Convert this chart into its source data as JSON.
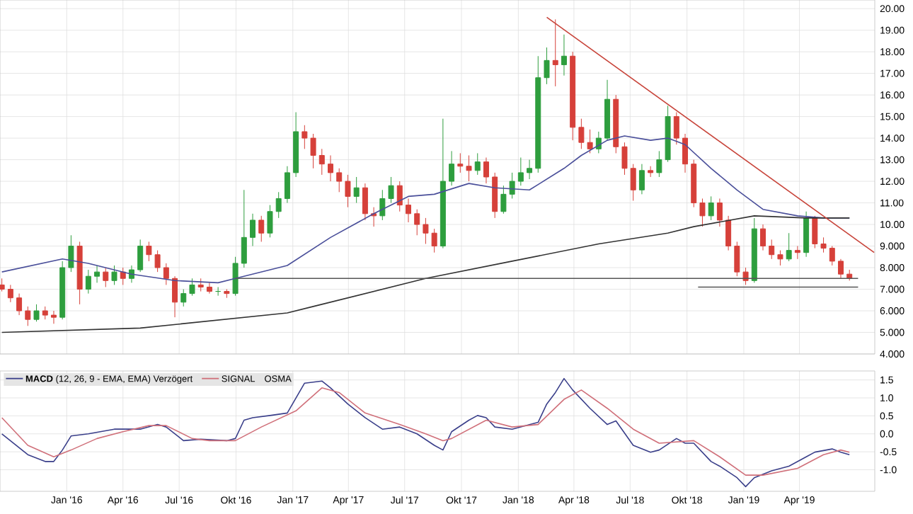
{
  "chart_data": [
    {
      "type": "candlestick",
      "xlim": [
        "2015-09-15",
        "2019-08-01"
      ],
      "ylim": [
        4,
        20.4
      ],
      "grid": true,
      "tick_labels": "y",
      "xticks": [
        {
          "value": "2016-01-01",
          "label": null
        },
        {
          "value": "2016-04-01",
          "label": null
        },
        {
          "value": "2016-07-01",
          "label": null
        },
        {
          "value": "2016-10-01",
          "label": null
        },
        {
          "value": "2017-01-01",
          "label": null
        },
        {
          "value": "2017-04-01",
          "label": null
        },
        {
          "value": "2017-07-01",
          "label": null
        },
        {
          "value": "2017-10-01",
          "label": null
        },
        {
          "value": "2018-01-01",
          "label": null
        },
        {
          "value": "2018-04-01",
          "label": null
        },
        {
          "value": "2018-07-01",
          "label": null
        },
        {
          "value": "2018-10-01",
          "label": null
        },
        {
          "value": "2019-01-01",
          "label": null
        },
        {
          "value": "2019-04-01",
          "label": null
        }
      ],
      "yticks": [
        {
          "value": 4,
          "label": "4.000"
        },
        {
          "value": 5,
          "label": "5.000"
        },
        {
          "value": 6,
          "label": "6.000"
        },
        {
          "value": 7,
          "label": "7.000"
        },
        {
          "value": 8,
          "label": "8.000"
        },
        {
          "value": 9,
          "label": "9.000"
        },
        {
          "value": 10,
          "label": "10.00"
        },
        {
          "value": 11,
          "label": "11.00"
        },
        {
          "value": 12,
          "label": "12.00"
        },
        {
          "value": 13,
          "label": "13.00"
        },
        {
          "value": 14,
          "label": "14.00"
        },
        {
          "value": 15,
          "label": "15.00"
        },
        {
          "value": 16,
          "label": "16.00"
        },
        {
          "value": 17,
          "label": "17.00"
        },
        {
          "value": 18,
          "label": "18.00"
        },
        {
          "value": 19,
          "label": "19.00"
        },
        {
          "value": 20,
          "label": "20.00"
        }
      ],
      "series": [
        {
          "type": "candlestick",
          "x": [
            "2015-09-18",
            "2015-10-02",
            "2015-10-16",
            "2015-10-30",
            "2015-11-13",
            "2015-11-27",
            "2015-12-11",
            "2015-12-25",
            "2016-01-08",
            "2016-01-22",
            "2016-02-05",
            "2016-02-19",
            "2016-03-04",
            "2016-03-18",
            "2016-04-01",
            "2016-04-15",
            "2016-04-29",
            "2016-05-13",
            "2016-05-27",
            "2016-06-10",
            "2016-06-24",
            "2016-07-08",
            "2016-07-22",
            "2016-08-05",
            "2016-08-19",
            "2016-09-02",
            "2016-09-16",
            "2016-09-30",
            "2016-10-14",
            "2016-10-28",
            "2016-11-11",
            "2016-11-25",
            "2016-12-09",
            "2016-12-23",
            "2017-01-06",
            "2017-01-20",
            "2017-02-03",
            "2017-02-17",
            "2017-03-03",
            "2017-03-17",
            "2017-03-31",
            "2017-04-14",
            "2017-04-28",
            "2017-05-12",
            "2017-05-26",
            "2017-06-09",
            "2017-06-23",
            "2017-07-07",
            "2017-07-21",
            "2017-08-04",
            "2017-08-18",
            "2017-09-01",
            "2017-09-15",
            "2017-09-29",
            "2017-10-13",
            "2017-10-27",
            "2017-11-10",
            "2017-11-24",
            "2017-12-08",
            "2017-12-22",
            "2018-01-05",
            "2018-01-19",
            "2018-02-02",
            "2018-02-16",
            "2018-03-02",
            "2018-03-16",
            "2018-03-30",
            "2018-04-13",
            "2018-04-27",
            "2018-05-11",
            "2018-05-25",
            "2018-06-08",
            "2018-06-22",
            "2018-07-06",
            "2018-07-20",
            "2018-08-03",
            "2018-08-17",
            "2018-08-31",
            "2018-09-14",
            "2018-09-28",
            "2018-10-12",
            "2018-10-26",
            "2018-11-09",
            "2018-11-23",
            "2018-12-07",
            "2018-12-21",
            "2019-01-04",
            "2019-01-18",
            "2019-02-01",
            "2019-02-15",
            "2019-03-01",
            "2019-03-15",
            "2019-03-29",
            "2019-04-12",
            "2019-04-26",
            "2019-05-10",
            "2019-05-24",
            "2019-06-07",
            "2019-06-21"
          ],
          "ohlc": [
            [
              7.2,
              7.5,
              6.9,
              7.0
            ],
            [
              7.0,
              7.2,
              6.4,
              6.6
            ],
            [
              6.6,
              6.8,
              5.8,
              6.0
            ],
            [
              6.0,
              6.2,
              5.3,
              5.6
            ],
            [
              5.6,
              6.3,
              5.5,
              6.0
            ],
            [
              6.0,
              6.2,
              5.6,
              5.8
            ],
            [
              5.8,
              6.0,
              5.4,
              5.7
            ],
            [
              5.7,
              8.3,
              5.6,
              8.0
            ],
            [
              8.0,
              9.5,
              7.8,
              9.0
            ],
            [
              9.0,
              9.2,
              6.3,
              7.0
            ],
            [
              7.0,
              7.9,
              6.8,
              7.6
            ],
            [
              7.6,
              8.1,
              7.3,
              7.8
            ],
            [
              7.8,
              8.0,
              7.1,
              7.4
            ],
            [
              7.4,
              8.1,
              7.2,
              7.8
            ],
            [
              7.8,
              8.0,
              7.2,
              7.5
            ],
            [
              7.5,
              8.1,
              7.3,
              7.9
            ],
            [
              7.9,
              9.3,
              7.8,
              9.0
            ],
            [
              9.0,
              9.2,
              8.3,
              8.6
            ],
            [
              8.6,
              8.8,
              7.8,
              8.0
            ],
            [
              8.0,
              8.2,
              7.2,
              7.5
            ],
            [
              7.5,
              7.6,
              5.7,
              6.4
            ],
            [
              6.4,
              7.0,
              6.2,
              6.8
            ],
            [
              6.8,
              7.5,
              6.7,
              7.2
            ],
            [
              7.2,
              7.5,
              6.9,
              7.1
            ],
            [
              7.1,
              7.3,
              6.8,
              6.9
            ],
            [
              6.9,
              7.1,
              6.7,
              6.9
            ],
            [
              6.9,
              7.0,
              6.6,
              6.8
            ],
            [
              6.8,
              8.5,
              6.7,
              8.2
            ],
            [
              8.2,
              11.6,
              8.0,
              9.4
            ],
            [
              9.4,
              10.5,
              9.0,
              10.2
            ],
            [
              10.2,
              10.4,
              9.2,
              9.6
            ],
            [
              9.6,
              10.9,
              9.4,
              10.6
            ],
            [
              10.6,
              11.5,
              10.3,
              11.2
            ],
            [
              11.2,
              12.7,
              11.0,
              12.4
            ],
            [
              12.4,
              15.2,
              12.2,
              14.3
            ],
            [
              14.3,
              14.6,
              13.5,
              14.0
            ],
            [
              14.0,
              14.2,
              12.6,
              13.2
            ],
            [
              13.2,
              13.5,
              12.3,
              12.8
            ],
            [
              12.8,
              13.2,
              12.0,
              12.4
            ],
            [
              12.4,
              12.6,
              11.5,
              12.0
            ],
            [
              12.0,
              12.3,
              10.8,
              11.3
            ],
            [
              11.3,
              12.2,
              11.0,
              11.7
            ],
            [
              11.7,
              11.9,
              10.2,
              10.5
            ],
            [
              10.5,
              10.8,
              9.9,
              10.4
            ],
            [
              10.4,
              11.6,
              10.2,
              11.2
            ],
            [
              11.2,
              12.2,
              11.0,
              11.8
            ],
            [
              11.8,
              12.0,
              10.6,
              10.9
            ],
            [
              10.9,
              11.2,
              10.1,
              10.5
            ],
            [
              10.5,
              10.7,
              9.5,
              10.0
            ],
            [
              10.0,
              10.3,
              9.1,
              9.6
            ],
            [
              9.6,
              9.8,
              8.7,
              9.0
            ],
            [
              9.0,
              14.9,
              8.9,
              12.0
            ],
            [
              12.0,
              13.4,
              11.8,
              12.8
            ],
            [
              12.8,
              13.3,
              12.4,
              12.7
            ],
            [
              12.7,
              13.2,
              12.0,
              12.5
            ],
            [
              12.5,
              13.3,
              12.3,
              12.9
            ],
            [
              12.9,
              13.1,
              11.9,
              12.2
            ],
            [
              12.2,
              12.4,
              10.3,
              10.6
            ],
            [
              10.6,
              11.8,
              10.5,
              11.4
            ],
            [
              11.4,
              12.4,
              11.2,
              12.0
            ],
            [
              12.0,
              13.1,
              11.8,
              12.4
            ],
            [
              12.4,
              13.0,
              12.1,
              12.6
            ],
            [
              12.6,
              17.8,
              12.4,
              16.8
            ],
            [
              16.8,
              18.2,
              16.5,
              17.6
            ],
            [
              17.6,
              19.5,
              16.4,
              17.4
            ],
            [
              17.4,
              18.8,
              16.9,
              17.8
            ],
            [
              17.8,
              18.0,
              13.9,
              14.5
            ],
            [
              14.5,
              14.9,
              13.5,
              13.8
            ],
            [
              13.8,
              14.4,
              13.3,
              13.5
            ],
            [
              13.5,
              14.3,
              13.3,
              14.0
            ],
            [
              14.0,
              16.7,
              13.9,
              15.8
            ],
            [
              15.8,
              16.0,
              13.3,
              13.6
            ],
            [
              13.6,
              13.8,
              12.3,
              12.6
            ],
            [
              12.6,
              12.8,
              11.1,
              11.6
            ],
            [
              11.6,
              12.8,
              11.4,
              12.5
            ],
            [
              12.5,
              12.7,
              12.2,
              12.4
            ],
            [
              12.4,
              13.4,
              12.2,
              13.0
            ],
            [
              13.0,
              15.5,
              12.9,
              15.0
            ],
            [
              15.0,
              15.2,
              13.7,
              14.0
            ],
            [
              14.0,
              14.2,
              12.4,
              12.8
            ],
            [
              12.8,
              13.0,
              10.8,
              11.0
            ],
            [
              11.0,
              11.2,
              9.9,
              10.4
            ],
            [
              10.4,
              11.3,
              10.2,
              11.0
            ],
            [
              11.0,
              11.2,
              9.9,
              10.2
            ],
            [
              10.2,
              10.4,
              8.8,
              9.0
            ],
            [
              9.0,
              9.2,
              7.6,
              7.8
            ],
            [
              7.8,
              8.0,
              7.2,
              7.4
            ],
            [
              7.4,
              10.3,
              7.3,
              9.8
            ],
            [
              9.8,
              10.0,
              8.8,
              9.0
            ],
            [
              9.0,
              9.3,
              8.4,
              8.6
            ],
            [
              8.6,
              8.8,
              8.1,
              8.4
            ],
            [
              8.4,
              9.6,
              8.3,
              8.8
            ],
            [
              8.8,
              9.0,
              8.4,
              8.7
            ],
            [
              8.7,
              10.6,
              8.5,
              10.3
            ],
            [
              10.3,
              10.4,
              8.9,
              9.1
            ],
            [
              9.1,
              9.4,
              8.7,
              8.9
            ],
            [
              8.9,
              9.0,
              8.1,
              8.3
            ],
            [
              8.3,
              8.4,
              7.5,
              7.7
            ],
            [
              7.7,
              7.9,
              7.4,
              7.5
            ]
          ],
          "colors": [
            "#d6403a",
            "#d6403a",
            "#d6403a",
            "#d6403a",
            "#2e9e3e",
            "#d6403a",
            "#d6403a",
            "#2e9e3e",
            "#2e9e3e",
            "#d6403a",
            "#2e9e3e",
            "#2e9e3e",
            "#d6403a",
            "#2e9e3e",
            "#d6403a",
            "#2e9e3e",
            "#2e9e3e",
            "#d6403a",
            "#d6403a",
            "#d6403a",
            "#d6403a",
            "#2e9e3e",
            "#2e9e3e",
            "#d6403a",
            "#d6403a",
            "#2e9e3e",
            "#d6403a",
            "#2e9e3e",
            "#2e9e3e",
            "#2e9e3e",
            "#d6403a",
            "#2e9e3e",
            "#2e9e3e",
            "#2e9e3e",
            "#2e9e3e",
            "#d6403a",
            "#d6403a",
            "#d6403a",
            "#d6403a",
            "#d6403a",
            "#d6403a",
            "#2e9e3e",
            "#d6403a",
            "#d6403a",
            "#2e9e3e",
            "#2e9e3e",
            "#d6403a",
            "#d6403a",
            "#d6403a",
            "#d6403a",
            "#d6403a",
            "#2e9e3e",
            "#2e9e3e",
            "#d6403a",
            "#d6403a",
            "#2e9e3e",
            "#d6403a",
            "#d6403a",
            "#2e9e3e",
            "#2e9e3e",
            "#2e9e3e",
            "#2e9e3e",
            "#2e9e3e",
            "#2e9e3e",
            "#d6403a",
            "#2e9e3e",
            "#d6403a",
            "#d6403a",
            "#d6403a",
            "#2e9e3e",
            "#2e9e3e",
            "#d6403a",
            "#d6403a",
            "#d6403a",
            "#2e9e3e",
            "#d6403a",
            "#2e9e3e",
            "#2e9e3e",
            "#d6403a",
            "#d6403a",
            "#d6403a",
            "#d6403a",
            "#2e9e3e",
            "#d6403a",
            "#d6403a",
            "#d6403a",
            "#d6403a",
            "#2e9e3e",
            "#d6403a",
            "#d6403a",
            "#d6403a",
            "#2e9e3e",
            "#d6403a",
            "#2e9e3e",
            "#d6403a",
            "#d6403a",
            "#d6403a",
            "#d6403a",
            "#d6403a"
          ]
        },
        {
          "type": "line",
          "color": "#4a4f9a",
          "x": [
            "2015-09-18",
            "2015-12-25",
            "2016-02-05",
            "2016-04-15",
            "2016-06-24",
            "2016-09-02",
            "2016-09-30",
            "2016-12-23",
            "2017-03-03",
            "2017-05-12",
            "2017-07-07",
            "2017-08-18",
            "2017-10-13",
            "2017-11-24",
            "2018-01-19",
            "2018-03-16",
            "2018-04-13",
            "2018-05-25",
            "2018-06-22",
            "2018-08-03",
            "2018-08-31",
            "2018-09-28",
            "2018-11-09",
            "2018-12-21",
            "2019-02-01",
            "2019-03-29",
            "2019-05-10",
            "2019-06-21"
          ],
          "values": [
            7.8,
            8.4,
            8.2,
            7.7,
            7.4,
            7.3,
            7.5,
            8.1,
            9.4,
            10.5,
            11.3,
            11.4,
            11.9,
            11.7,
            11.6,
            12.6,
            13.2,
            13.9,
            14.1,
            13.9,
            14.0,
            13.7,
            12.6,
            11.6,
            10.7,
            10.4,
            10.3,
            10.3
          ]
        },
        {
          "type": "line",
          "color": "#333333",
          "x": [
            "2015-09-18",
            "2016-04-29",
            "2016-12-23",
            "2017-02-03",
            "2017-08-04",
            "2017-12-22",
            "2018-05-11",
            "2018-08-31",
            "2018-10-12",
            "2019-01-18",
            "2019-04-12",
            "2019-06-21"
          ],
          "values": [
            5.0,
            5.2,
            5.9,
            6.2,
            7.5,
            8.3,
            9.1,
            9.6,
            9.9,
            10.4,
            10.3,
            10.3
          ]
        },
        {
          "type": "line",
          "color": "#c8443a",
          "x": [
            "2018-02-16",
            "2019-07-31"
          ],
          "values": [
            19.6,
            8.7
          ]
        },
        {
          "type": "line",
          "color": "#555555",
          "x": [
            "2016-09-30",
            "2019-07-05"
          ],
          "values": [
            7.5,
            7.5
          ]
        },
        {
          "type": "line",
          "color": "#555555",
          "x": [
            "2018-10-19",
            "2019-07-05"
          ],
          "values": [
            7.1,
            7.1
          ]
        }
      ]
    },
    {
      "type": "line",
      "xlim": [
        "2015-09-15",
        "2019-08-01"
      ],
      "ylim": [
        -1.6,
        1.75
      ],
      "grid": true,
      "legend": "top left",
      "annotations": [
        "OSMA"
      ],
      "xticks": [
        {
          "value": "2016-01-01",
          "label": "Jan '16"
        },
        {
          "value": "2016-04-01",
          "label": "Apr '16"
        },
        {
          "value": "2016-07-01",
          "label": "Jul '16"
        },
        {
          "value": "2016-10-01",
          "label": "Okt '16"
        },
        {
          "value": "2017-01-01",
          "label": "Jan '17"
        },
        {
          "value": "2017-04-01",
          "label": "Apr '17"
        },
        {
          "value": "2017-07-01",
          "label": "Jul '17"
        },
        {
          "value": "2017-10-01",
          "label": "Okt '17"
        },
        {
          "value": "2018-01-01",
          "label": "Jan '18"
        },
        {
          "value": "2018-04-01",
          "label": "Apr '18"
        },
        {
          "value": "2018-07-01",
          "label": "Jul '18"
        },
        {
          "value": "2018-10-01",
          "label": "Okt '18"
        },
        {
          "value": "2019-01-01",
          "label": "Jan '19"
        },
        {
          "value": "2019-04-01",
          "label": "Apr '19"
        }
      ],
      "yticks": [
        {
          "value": -1.0,
          "label": "-1.0"
        },
        {
          "value": -0.5,
          "label": "-0.5"
        },
        {
          "value": 0,
          "label": "0.0"
        },
        {
          "value": 0.5,
          "label": "0.5"
        },
        {
          "value": 1.0,
          "label": "1.0"
        },
        {
          "value": 1.5,
          "label": "1.5"
        }
      ],
      "series": [
        {
          "name": "**MACD** (12, 26, 9 - EMA, EMA) Verzögert",
          "color": "#3a3f8a",
          "x": [
            "2015-09-18",
            "2015-10-30",
            "2015-11-27",
            "2015-12-11",
            "2015-12-25",
            "2016-01-08",
            "2016-02-05",
            "2016-03-18",
            "2016-04-29",
            "2016-05-27",
            "2016-06-10",
            "2016-07-08",
            "2016-08-05",
            "2016-09-16",
            "2016-09-30",
            "2016-10-14",
            "2016-10-28",
            "2016-11-25",
            "2016-12-23",
            "2017-01-20",
            "2017-02-17",
            "2017-03-03",
            "2017-03-31",
            "2017-04-28",
            "2017-05-26",
            "2017-06-23",
            "2017-07-21",
            "2017-08-18",
            "2017-09-01",
            "2017-09-15",
            "2017-10-13",
            "2017-10-27",
            "2017-11-10",
            "2017-11-24",
            "2017-12-22",
            "2018-02-02",
            "2018-02-16",
            "2018-03-02",
            "2018-03-16",
            "2018-03-30",
            "2018-04-27",
            "2018-05-25",
            "2018-06-08",
            "2018-07-06",
            "2018-08-03",
            "2018-08-17",
            "2018-09-14",
            "2018-09-28",
            "2018-10-12",
            "2018-11-09",
            "2018-11-23",
            "2018-12-21",
            "2019-01-04",
            "2019-01-18",
            "2019-02-15",
            "2019-03-15",
            "2019-04-12",
            "2019-04-26",
            "2019-05-24",
            "2019-06-07",
            "2019-06-21"
          ],
          "values": [
            0.0,
            -0.58,
            -0.77,
            -0.77,
            -0.45,
            -0.06,
            0.0,
            0.13,
            0.13,
            0.26,
            0.19,
            -0.19,
            -0.15,
            -0.19,
            -0.13,
            0.38,
            0.45,
            0.51,
            0.58,
            1.41,
            1.47,
            1.28,
            0.83,
            0.45,
            0.13,
            0.19,
            0.0,
            -0.32,
            -0.45,
            0.06,
            0.38,
            0.51,
            0.45,
            0.19,
            0.13,
            0.32,
            0.83,
            1.15,
            1.54,
            1.22,
            0.71,
            0.26,
            0.36,
            -0.32,
            -0.51,
            -0.45,
            -0.13,
            -0.26,
            -0.26,
            -0.77,
            -0.9,
            -1.22,
            -1.47,
            -1.22,
            -1.03,
            -0.9,
            -0.64,
            -0.51,
            -0.42,
            -0.51,
            -0.58
          ]
        },
        {
          "name": "SIGNAL",
          "color": "#d0707a",
          "x": [
            "2015-09-18",
            "2015-10-30",
            "2015-12-11",
            "2016-01-08",
            "2016-02-19",
            "2016-04-01",
            "2016-05-13",
            "2016-06-10",
            "2016-07-22",
            "2016-08-19",
            "2016-09-30",
            "2016-11-11",
            "2017-01-06",
            "2017-02-17",
            "2017-03-17",
            "2017-04-28",
            "2017-06-23",
            "2017-08-04",
            "2017-09-01",
            "2017-09-15",
            "2017-11-10",
            "2017-12-22",
            "2018-02-02",
            "2018-03-16",
            "2018-04-13",
            "2018-05-25",
            "2018-07-06",
            "2018-08-17",
            "2018-10-12",
            "2018-11-23",
            "2019-01-04",
            "2019-02-01",
            "2019-03-29",
            "2019-05-10",
            "2019-06-07",
            "2019-06-21"
          ],
          "values": [
            0.45,
            -0.32,
            -0.64,
            -0.45,
            -0.13,
            0.06,
            0.23,
            0.23,
            -0.13,
            -0.19,
            -0.19,
            0.19,
            0.64,
            1.28,
            1.15,
            0.58,
            0.26,
            0.0,
            -0.19,
            -0.13,
            0.38,
            0.19,
            0.26,
            0.96,
            1.22,
            0.71,
            0.13,
            -0.26,
            -0.19,
            -0.64,
            -1.15,
            -1.15,
            -0.96,
            -0.58,
            -0.45,
            -0.51
          ]
        }
      ]
    }
  ]
}
